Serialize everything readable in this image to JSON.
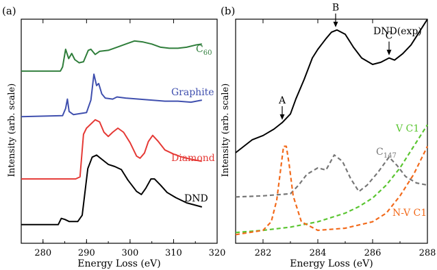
{
  "chart_data": [
    {
      "type": "line",
      "panel_label": "(a)",
      "xlabel": "Energy Loss (eV)",
      "ylabel": "Intensity (arb. scale)",
      "xlim": [
        275,
        320
      ],
      "x_ticks": [
        280,
        290,
        300,
        310,
        320
      ],
      "y_ticks_shown": false,
      "grid": false,
      "series": [
        {
          "name": "C",
          "name_subscript": "60",
          "color": "#2e7d3a",
          "points": [
            [
              275,
              8.3
            ],
            [
              284,
              8.3
            ],
            [
              284.5,
              8.5
            ],
            [
              285.2,
              9.35
            ],
            [
              285.9,
              8.9
            ],
            [
              286.6,
              9.15
            ],
            [
              287.3,
              8.85
            ],
            [
              288.3,
              8.7
            ],
            [
              289.3,
              8.75
            ],
            [
              290.4,
              9.3
            ],
            [
              291,
              9.35
            ],
            [
              292,
              9.1
            ],
            [
              293,
              9.25
            ],
            [
              295,
              9.3
            ],
            [
              297,
              9.45
            ],
            [
              299,
              9.6
            ],
            [
              301,
              9.75
            ],
            [
              303,
              9.7
            ],
            [
              305,
              9.6
            ],
            [
              307,
              9.45
            ],
            [
              309,
              9.4
            ],
            [
              311,
              9.4
            ],
            [
              313,
              9.45
            ],
            [
              315,
              9.55
            ],
            [
              316.5,
              9.6
            ]
          ]
        },
        {
          "name": "Graphite",
          "color": "#3f4fae",
          "points": [
            [
              275,
              6.1
            ],
            [
              284.5,
              6.15
            ],
            [
              285.2,
              6.5
            ],
            [
              285.6,
              6.95
            ],
            [
              286,
              6.35
            ],
            [
              287,
              6.2
            ],
            [
              288.5,
              6.25
            ],
            [
              290,
              6.3
            ],
            [
              291,
              6.9
            ],
            [
              291.7,
              8.15
            ],
            [
              292.3,
              7.6
            ],
            [
              292.8,
              7.7
            ],
            [
              293.5,
              7.2
            ],
            [
              294.3,
              7.0
            ],
            [
              296,
              6.95
            ],
            [
              297,
              7.05
            ],
            [
              299,
              7.0
            ],
            [
              302,
              6.95
            ],
            [
              305,
              6.9
            ],
            [
              308,
              6.85
            ],
            [
              311,
              6.85
            ],
            [
              314,
              6.8
            ],
            [
              316.5,
              6.9
            ]
          ]
        },
        {
          "name": "Diamond",
          "color": "#e53935",
          "points": [
            [
              275,
              3.1
            ],
            [
              287.5,
              3.1
            ],
            [
              288.5,
              3.2
            ],
            [
              289.3,
              5.25
            ],
            [
              290,
              5.55
            ],
            [
              291,
              5.75
            ],
            [
              292,
              5.95
            ],
            [
              293,
              5.85
            ],
            [
              294,
              5.35
            ],
            [
              295,
              5.15
            ],
            [
              296,
              5.35
            ],
            [
              297.2,
              5.55
            ],
            [
              298.5,
              5.35
            ],
            [
              300,
              4.85
            ],
            [
              301.5,
              4.2
            ],
            [
              302.3,
              4.1
            ],
            [
              303.3,
              4.35
            ],
            [
              304.2,
              4.9
            ],
            [
              305.2,
              5.2
            ],
            [
              306.5,
              4.9
            ],
            [
              308,
              4.5
            ],
            [
              310,
              4.3
            ],
            [
              312,
              4.15
            ],
            [
              314,
              4.05
            ],
            [
              316.5,
              3.95
            ]
          ]
        },
        {
          "name": "DND",
          "color": "#000000",
          "points": [
            [
              275,
              0.9
            ],
            [
              283.5,
              0.9
            ],
            [
              284.2,
              1.2
            ],
            [
              285,
              1.15
            ],
            [
              286,
              1.05
            ],
            [
              288,
              1.05
            ],
            [
              289,
              1.35
            ],
            [
              290.3,
              3.6
            ],
            [
              291.3,
              4.15
            ],
            [
              292.3,
              4.25
            ],
            [
              293.5,
              4.05
            ],
            [
              295,
              3.8
            ],
            [
              296.5,
              3.7
            ],
            [
              298,
              3.55
            ],
            [
              299.5,
              3.05
            ],
            [
              301.5,
              2.5
            ],
            [
              302.6,
              2.35
            ],
            [
              303.6,
              2.65
            ],
            [
              304.8,
              3.1
            ],
            [
              305.6,
              3.1
            ],
            [
              307,
              2.8
            ],
            [
              308.5,
              2.45
            ],
            [
              310.5,
              2.2
            ],
            [
              313,
              1.95
            ],
            [
              316.5,
              1.75
            ]
          ]
        }
      ]
    },
    {
      "type": "line",
      "panel_label": "(b)",
      "xlabel": "Energy Loss (eV)",
      "ylabel": "Intensity (arb. scale)",
      "xlim": [
        281,
        288
      ],
      "x_ticks": [
        282,
        284,
        286,
        288
      ],
      "y_ticks_shown": false,
      "grid": false,
      "series": [
        {
          "name": "DND(exp)",
          "color": "#000000",
          "style": "solid",
          "points": [
            [
              281,
              0.42
            ],
            [
              281.3,
              0.45
            ],
            [
              281.6,
              0.48
            ],
            [
              282,
              0.5
            ],
            [
              282.4,
              0.53
            ],
            [
              282.7,
              0.56
            ],
            [
              283,
              0.6
            ],
            [
              283.2,
              0.67
            ],
            [
              283.5,
              0.76
            ],
            [
              283.8,
              0.86
            ],
            [
              284,
              0.9
            ],
            [
              284.3,
              0.95
            ],
            [
              284.5,
              0.98
            ],
            [
              284.7,
              0.99
            ],
            [
              285,
              0.97
            ],
            [
              285.3,
              0.91
            ],
            [
              285.6,
              0.86
            ],
            [
              286,
              0.83
            ],
            [
              286.3,
              0.84
            ],
            [
              286.6,
              0.86
            ],
            [
              286.8,
              0.85
            ],
            [
              287.1,
              0.88
            ],
            [
              287.4,
              0.92
            ],
            [
              287.7,
              0.98
            ],
            [
              288,
              1.04
            ]
          ]
        },
        {
          "name": "V C1",
          "color": "#5ac531",
          "style": "dashed",
          "points": [
            [
              281,
              0.05
            ],
            [
              282,
              0.06
            ],
            [
              283,
              0.075
            ],
            [
              284,
              0.1
            ],
            [
              285,
              0.14
            ],
            [
              285.5,
              0.17
            ],
            [
              286,
              0.21
            ],
            [
              286.5,
              0.27
            ],
            [
              287,
              0.35
            ],
            [
              287.5,
              0.45
            ],
            [
              288,
              0.55
            ]
          ]
        },
        {
          "name": "C",
          "name_subscript": "147",
          "color": "#777777",
          "style": "dashed",
          "points": [
            [
              281,
              0.215
            ],
            [
              282,
              0.22
            ],
            [
              283,
              0.23
            ],
            [
              283.3,
              0.27
            ],
            [
              283.6,
              0.32
            ],
            [
              284,
              0.35
            ],
            [
              284.3,
              0.34
            ],
            [
              284.6,
              0.41
            ],
            [
              284.9,
              0.38
            ],
            [
              285.2,
              0.3
            ],
            [
              285.5,
              0.24
            ],
            [
              285.8,
              0.27
            ],
            [
              286.2,
              0.33
            ],
            [
              286.6,
              0.4
            ],
            [
              286.9,
              0.36
            ],
            [
              287.2,
              0.31
            ],
            [
              287.6,
              0.28
            ],
            [
              288,
              0.27
            ]
          ]
        },
        {
          "name": "N-V C1",
          "color": "#f26a1b",
          "style": "dashed",
          "points": [
            [
              281,
              0.04
            ],
            [
              282,
              0.06
            ],
            [
              282.3,
              0.1
            ],
            [
              282.5,
              0.2
            ],
            [
              282.65,
              0.35
            ],
            [
              282.75,
              0.45
            ],
            [
              282.85,
              0.45
            ],
            [
              282.95,
              0.37
            ],
            [
              283.1,
              0.22
            ],
            [
              283.4,
              0.1
            ],
            [
              284,
              0.06
            ],
            [
              285,
              0.07
            ],
            [
              286,
              0.1
            ],
            [
              286.5,
              0.14
            ],
            [
              287,
              0.22
            ],
            [
              287.5,
              0.32
            ],
            [
              288,
              0.45
            ]
          ]
        }
      ],
      "annotations": [
        {
          "label": "A",
          "x": 282.7,
          "y": 0.56
        },
        {
          "label": "B",
          "x": 284.65,
          "y": 0.99
        },
        {
          "label": "C",
          "x": 286.6,
          "y": 0.86
        }
      ]
    }
  ]
}
